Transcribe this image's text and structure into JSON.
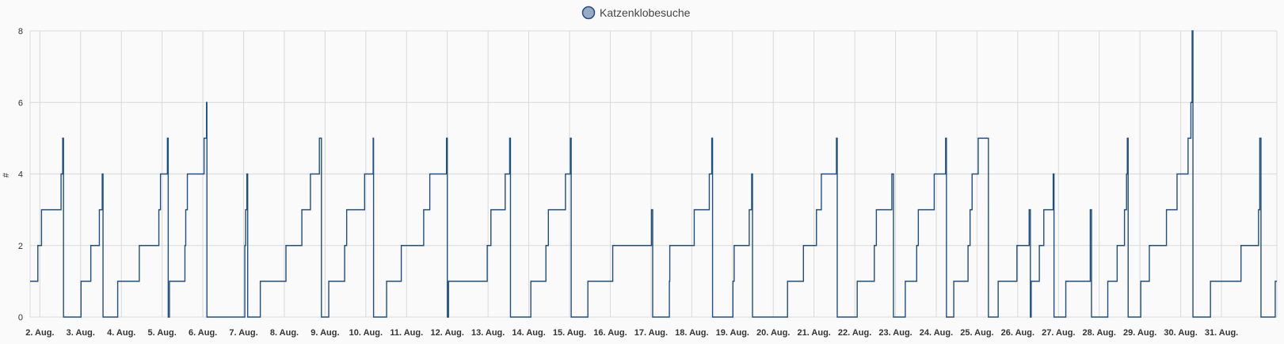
{
  "chart_data": {
    "type": "line",
    "title": "",
    "xlabel": "",
    "ylabel": "#",
    "ylim": [
      0,
      8
    ],
    "yticks": [
      0,
      2,
      4,
      6,
      8
    ],
    "grid": true,
    "legend_placement": "top-center",
    "x_tick_labels": [
      "2. Aug.",
      "3. Aug.",
      "4. Aug.",
      "5. Aug.",
      "6. Aug.",
      "7. Aug.",
      "8. Aug.",
      "9. Aug.",
      "10. Aug.",
      "11. Aug.",
      "12. Aug.",
      "13. Aug.",
      "14. Aug.",
      "15. Aug.",
      "16. Aug.",
      "17. Aug.",
      "18. Aug.",
      "19. Aug.",
      "20. Aug.",
      "21. Aug.",
      "22. Aug.",
      "23. Aug.",
      "24. Aug.",
      "25. Aug.",
      "26. Aug.",
      "27. Aug.",
      "28. Aug.",
      "29. Aug.",
      "30. Aug.",
      "31. Aug."
    ],
    "x_unit": "days (1 = 1. Aug. 00:00)",
    "series": [
      {
        "name": "Katzenklobesuche",
        "color": "#1f4e80",
        "legend_color": "#98aac4",
        "step": "after",
        "points": [
          [
            1.76,
            1
          ],
          [
            1.95,
            2
          ],
          [
            2.04,
            3
          ],
          [
            2.52,
            4
          ],
          [
            2.56,
            5
          ],
          [
            2.58,
            0
          ],
          [
            3.01,
            1
          ],
          [
            3.25,
            2
          ],
          [
            3.46,
            3
          ],
          [
            3.53,
            4
          ],
          [
            3.55,
            0
          ],
          [
            3.91,
            1
          ],
          [
            4.44,
            2
          ],
          [
            4.92,
            3
          ],
          [
            4.96,
            4
          ],
          [
            5.13,
            5
          ],
          [
            5.15,
            0
          ],
          [
            5.18,
            1
          ],
          [
            5.56,
            2
          ],
          [
            5.58,
            3
          ],
          [
            5.62,
            4
          ],
          [
            6.03,
            5
          ],
          [
            6.09,
            6
          ],
          [
            6.1,
            0
          ],
          [
            7.03,
            2
          ],
          [
            7.05,
            3
          ],
          [
            7.08,
            4
          ],
          [
            7.1,
            0
          ],
          [
            7.41,
            1
          ],
          [
            8.04,
            2
          ],
          [
            8.43,
            3
          ],
          [
            8.64,
            4
          ],
          [
            8.86,
            5
          ],
          [
            8.91,
            0
          ],
          [
            9.09,
            1
          ],
          [
            9.48,
            2
          ],
          [
            9.53,
            3
          ],
          [
            9.97,
            4
          ],
          [
            10.18,
            5
          ],
          [
            10.19,
            0
          ],
          [
            10.51,
            1
          ],
          [
            10.87,
            2
          ],
          [
            11.42,
            3
          ],
          [
            11.57,
            4
          ],
          [
            11.98,
            5
          ],
          [
            12.0,
            0
          ],
          [
            12.03,
            1
          ],
          [
            12.98,
            2
          ],
          [
            13.07,
            3
          ],
          [
            13.42,
            4
          ],
          [
            13.53,
            5
          ],
          [
            13.55,
            0
          ],
          [
            14.05,
            1
          ],
          [
            14.42,
            2
          ],
          [
            14.48,
            3
          ],
          [
            14.9,
            4
          ],
          [
            15.02,
            5
          ],
          [
            15.04,
            0
          ],
          [
            15.45,
            1
          ],
          [
            16.06,
            2
          ],
          [
            17.01,
            3
          ],
          [
            17.04,
            0
          ],
          [
            17.45,
            1
          ],
          [
            17.46,
            2
          ],
          [
            18.06,
            3
          ],
          [
            18.43,
            4
          ],
          [
            18.49,
            5
          ],
          [
            18.51,
            0
          ],
          [
            19.01,
            1
          ],
          [
            19.04,
            2
          ],
          [
            19.41,
            3
          ],
          [
            19.47,
            4
          ],
          [
            19.49,
            0
          ],
          [
            20.35,
            1
          ],
          [
            20.74,
            2
          ],
          [
            21.06,
            3
          ],
          [
            21.18,
            4
          ],
          [
            21.55,
            5
          ],
          [
            21.57,
            0
          ],
          [
            22.06,
            1
          ],
          [
            22.48,
            2
          ],
          [
            22.53,
            3
          ],
          [
            22.91,
            4
          ],
          [
            22.95,
            0
          ],
          [
            23.24,
            1
          ],
          [
            23.52,
            2
          ],
          [
            23.56,
            3
          ],
          [
            23.95,
            4
          ],
          [
            24.23,
            5
          ],
          [
            24.25,
            0
          ],
          [
            24.43,
            1
          ],
          [
            24.78,
            2
          ],
          [
            24.83,
            3
          ],
          [
            24.88,
            4
          ],
          [
            25.03,
            5
          ],
          [
            25.28,
            0
          ],
          [
            25.52,
            1
          ],
          [
            25.98,
            2
          ],
          [
            26.28,
            3
          ],
          [
            26.31,
            0
          ],
          [
            26.33,
            1
          ],
          [
            26.53,
            2
          ],
          [
            26.64,
            3
          ],
          [
            26.87,
            4
          ],
          [
            26.89,
            0
          ],
          [
            27.18,
            1
          ],
          [
            27.78,
            3
          ],
          [
            27.81,
            0
          ],
          [
            28.21,
            1
          ],
          [
            28.44,
            2
          ],
          [
            28.62,
            3
          ],
          [
            28.67,
            4
          ],
          [
            28.69,
            5
          ],
          [
            28.71,
            0
          ],
          [
            29.02,
            1
          ],
          [
            29.23,
            2
          ],
          [
            29.65,
            3
          ],
          [
            29.91,
            4
          ],
          [
            30.18,
            5
          ],
          [
            30.25,
            6
          ],
          [
            30.28,
            8
          ],
          [
            30.3,
            0
          ],
          [
            30.73,
            1
          ],
          [
            31.48,
            2
          ],
          [
            31.91,
            3
          ],
          [
            31.94,
            5
          ],
          [
            31.97,
            0
          ],
          [
            32.32,
            1
          ],
          [
            32.36,
            1
          ]
        ]
      }
    ]
  }
}
